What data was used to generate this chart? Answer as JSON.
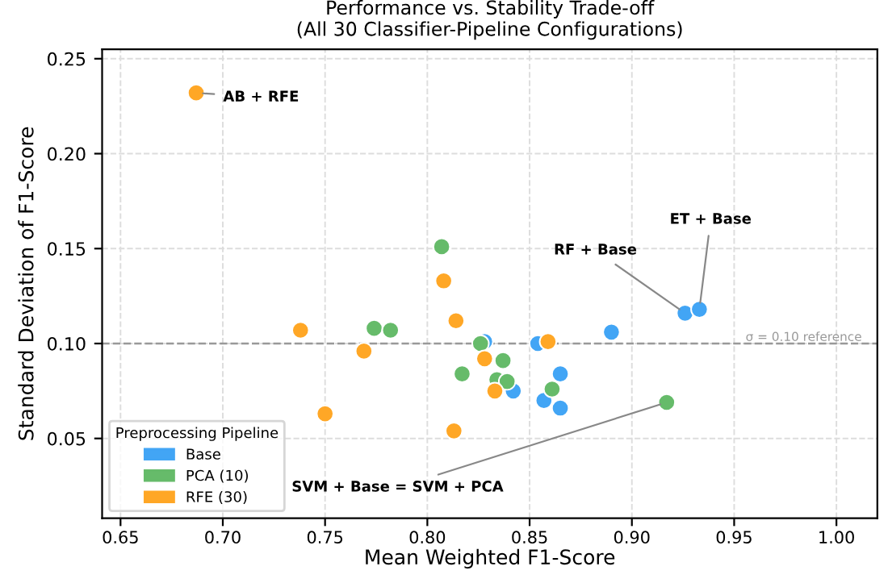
{
  "chart_data": {
    "type": "scatter",
    "title": "Performance vs. Stability Trade-off\n(All 30 Classifier-Pipeline Configurations)",
    "xlabel": "Mean Weighted F1-Score",
    "ylabel": "Standard Deviation of F1-Score",
    "legend_title": "Preprocessing Pipeline",
    "legend": "bottom left",
    "grid": true,
    "marker": "circle",
    "xlim": [
      0.641,
      1.02
    ],
    "ylim": [
      0.008,
      0.255
    ],
    "xticks": [
      0.65,
      {
        "value": 0.7,
        "label": "0.70"
      },
      0.75,
      {
        "value": 0.8,
        "label": "0.80"
      },
      0.85,
      {
        "value": 0.9,
        "label": "0.90"
      },
      0.95,
      {
        "value": 1.0,
        "label": "1.00"
      }
    ],
    "yticks": [
      0.05,
      {
        "value": 0.1,
        "label": "0.10"
      },
      0.15,
      {
        "value": 0.2,
        "label": "0.20"
      },
      0.25
    ],
    "series": [
      {
        "name": "Base",
        "color": "#42a5f5",
        "x": [
          0.828,
          0.842,
          0.854,
          0.865,
          0.857,
          0.865,
          0.89,
          0.926,
          0.933
        ],
        "values": [
          0.101,
          0.075,
          0.1,
          0.084,
          0.07,
          0.066,
          0.106,
          0.116,
          0.118
        ]
      },
      {
        "name": "PCA (10)",
        "color": "#66bb6a",
        "x": [
          0.807,
          0.774,
          0.782,
          0.826,
          0.837,
          0.817,
          0.834,
          0.839,
          0.861,
          0.917
        ],
        "values": [
          0.151,
          0.108,
          0.107,
          0.1,
          0.091,
          0.084,
          0.081,
          0.08,
          0.076,
          0.069
        ]
      },
      {
        "name": "RFE (30)",
        "color": "#ffa726",
        "x": [
          0.687,
          0.738,
          0.769,
          0.75,
          0.808,
          0.814,
          0.828,
          0.833,
          0.813,
          0.859
        ],
        "values": [
          0.232,
          0.107,
          0.096,
          0.063,
          0.133,
          0.112,
          0.092,
          0.075,
          0.054,
          0.101
        ]
      }
    ],
    "ref_lines": [
      {
        "axis": "y",
        "value": 0.1,
        "label": "σ = 0.10 reference",
        "color": "#999999",
        "line_style": "dashed"
      }
    ],
    "annotations": [
      {
        "text": "AB + RFE",
        "x": 0.687,
        "y": 0.232
      },
      {
        "text": "ET + Base",
        "x": 0.933,
        "y": 0.118
      },
      {
        "text": "RF + Base",
        "x": 0.926,
        "y": 0.116
      },
      {
        "text": "SVM + Base = SVM + PCA",
        "x": 0.917,
        "y": 0.069
      }
    ]
  }
}
